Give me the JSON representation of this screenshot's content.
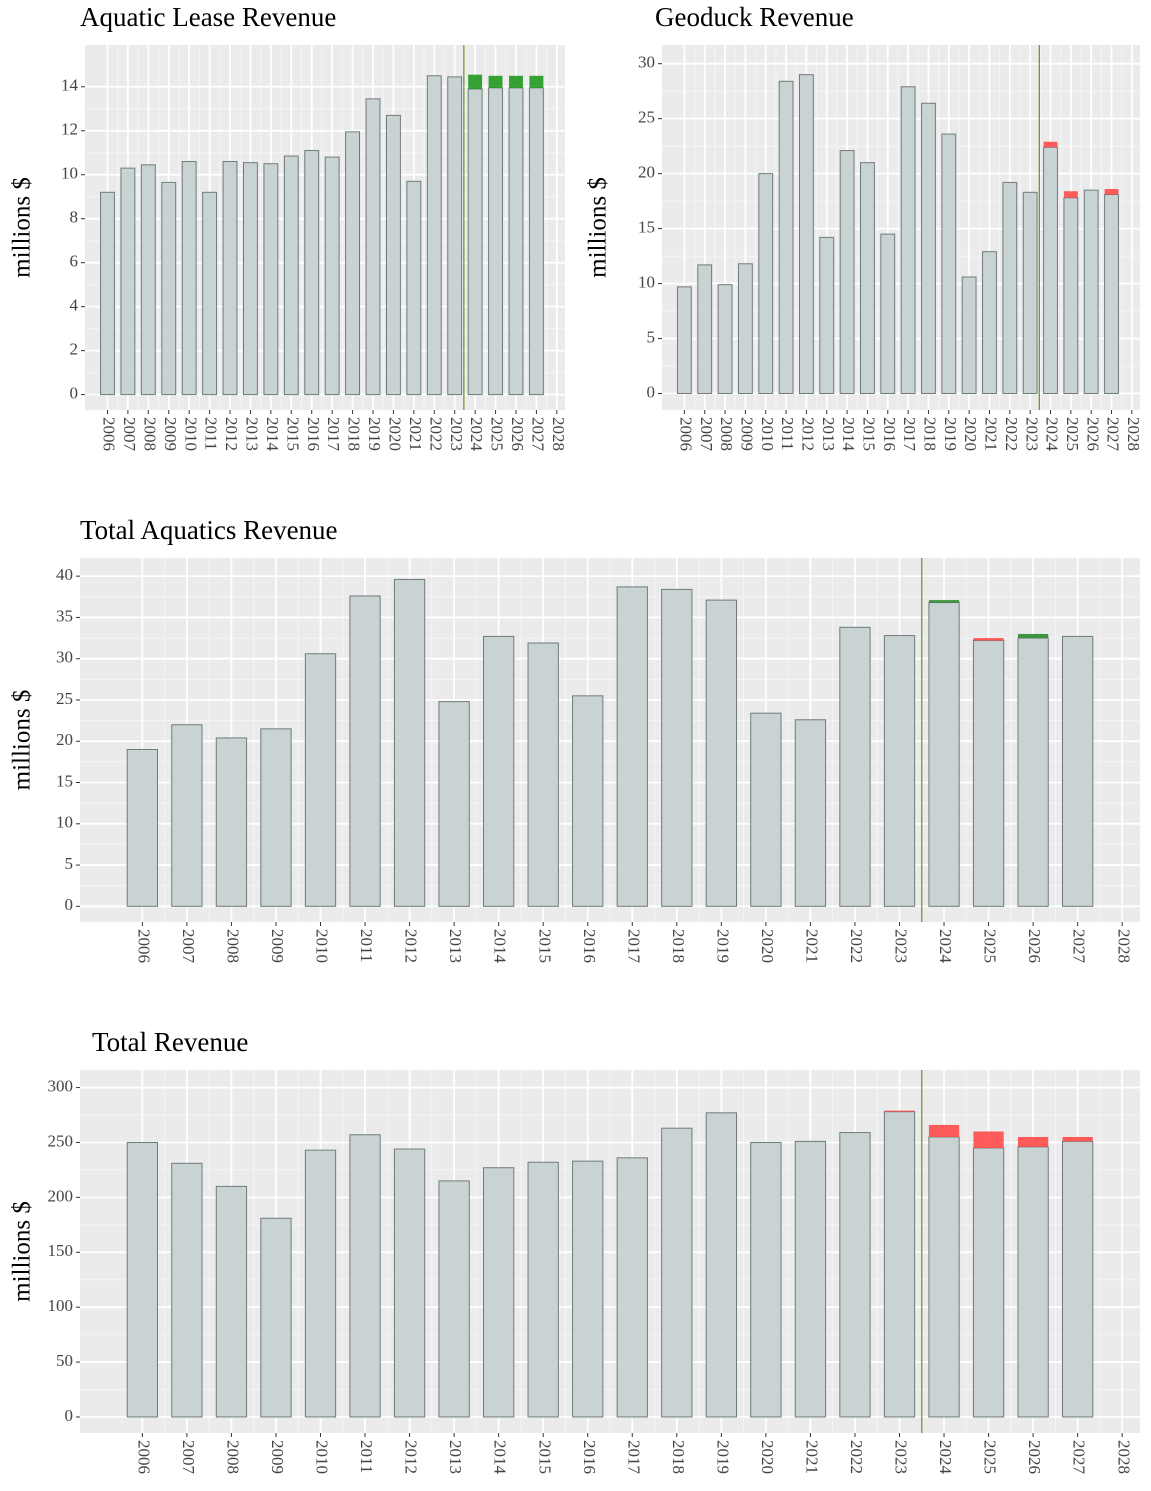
{
  "chart_data": [
    {
      "type": "bar",
      "title": "Aquatic Lease Revenue",
      "y_label": "millions $",
      "x": [
        2006,
        2007,
        2008,
        2009,
        2010,
        2011,
        2012,
        2013,
        2014,
        2015,
        2016,
        2017,
        2018,
        2019,
        2020,
        2021,
        2022,
        2023,
        2024,
        2025,
        2026,
        2027,
        2028
      ],
      "series": [
        {
          "color": "#c9d3d3",
          "values": [
            9.2,
            10.3,
            10.45,
            9.65,
            10.6,
            9.2,
            10.6,
            10.55,
            10.5,
            10.85,
            11.1,
            10.8,
            11.95,
            13.45,
            12.7,
            9.7,
            14.5,
            14.45,
            13.9,
            13.95,
            13.95,
            13.95,
            null
          ]
        },
        {
          "color": "#1f9a1f",
          "values": [
            null,
            null,
            null,
            null,
            null,
            null,
            null,
            null,
            null,
            null,
            null,
            null,
            null,
            null,
            null,
            null,
            null,
            null,
            0.65,
            0.55,
            0.55,
            0.55,
            null
          ]
        }
      ],
      "xlim": [
        2004.9,
        2028.4
      ],
      "ylim": [
        -0.7,
        15.9
      ],
      "xticks": [
        2006,
        2007,
        2008,
        2009,
        2010,
        2011,
        2012,
        2013,
        2014,
        2015,
        2016,
        2017,
        2018,
        2019,
        2020,
        2021,
        2022,
        2023,
        2024,
        2025,
        2026,
        2027,
        2028
      ],
      "yticks": [
        0,
        2,
        4,
        6,
        8,
        10,
        12,
        14
      ],
      "grid": true,
      "vline": 2023.45,
      "vline_color": "#6b8e23"
    },
    {
      "type": "bar",
      "title": "Geoduck Revenue",
      "y_label": "millions $",
      "x": [
        2006,
        2007,
        2008,
        2009,
        2010,
        2011,
        2012,
        2013,
        2014,
        2015,
        2016,
        2017,
        2018,
        2019,
        2020,
        2021,
        2022,
        2023,
        2024,
        2025,
        2026,
        2027,
        2028
      ],
      "series": [
        {
          "color": "#c9d3d3",
          "values": [
            9.7,
            11.7,
            9.9,
            11.8,
            20.0,
            28.4,
            29.0,
            14.2,
            22.1,
            21.0,
            14.5,
            27.9,
            26.4,
            23.6,
            10.6,
            12.9,
            19.2,
            18.3,
            22.4,
            17.8,
            18.5,
            18.1,
            null
          ]
        },
        {
          "color": "#ff4a4a",
          "values": [
            null,
            null,
            null,
            null,
            null,
            null,
            null,
            null,
            null,
            null,
            null,
            null,
            null,
            null,
            null,
            null,
            null,
            null,
            0.5,
            0.6,
            null,
            0.5,
            null
          ]
        }
      ],
      "xlim": [
        2004.9,
        2028.4
      ],
      "ylim": [
        -1.5,
        31.7
      ],
      "xticks": [
        2006,
        2007,
        2008,
        2009,
        2010,
        2011,
        2012,
        2013,
        2014,
        2015,
        2016,
        2017,
        2018,
        2019,
        2020,
        2021,
        2022,
        2023,
        2024,
        2025,
        2026,
        2027,
        2028
      ],
      "yticks": [
        0,
        5,
        10,
        15,
        20,
        25,
        30
      ],
      "grid": true,
      "vline": 2023.45,
      "vline_color": "#6b8e23"
    },
    {
      "type": "bar",
      "title": "Total Aquatics Revenue",
      "y_label": "millions $",
      "x": [
        2006,
        2007,
        2008,
        2009,
        2010,
        2011,
        2012,
        2013,
        2014,
        2015,
        2016,
        2017,
        2018,
        2019,
        2020,
        2021,
        2022,
        2023,
        2024,
        2025,
        2026,
        2027,
        2028
      ],
      "series": [
        {
          "color": "#c9d3d3",
          "values": [
            19.0,
            22.0,
            20.4,
            21.5,
            30.6,
            37.6,
            39.6,
            24.8,
            32.7,
            31.9,
            25.5,
            38.7,
            38.4,
            37.1,
            23.4,
            22.6,
            33.8,
            32.8,
            36.8,
            32.2,
            32.5,
            32.7,
            null
          ]
        },
        {
          "color": "#2e8b2e",
          "values": [
            null,
            null,
            null,
            null,
            null,
            null,
            null,
            null,
            null,
            null,
            null,
            null,
            null,
            null,
            null,
            null,
            null,
            null,
            0.3,
            null,
            0.5,
            null,
            null
          ]
        },
        {
          "color": "#ff4a4a",
          "values": [
            null,
            null,
            null,
            null,
            null,
            null,
            null,
            null,
            null,
            null,
            null,
            null,
            null,
            null,
            null,
            null,
            null,
            null,
            null,
            0.3,
            null,
            null,
            null
          ]
        }
      ],
      "xlim": [
        2004.6,
        2028.4
      ],
      "ylim": [
        -1.9,
        42.2
      ],
      "xticks": [
        2006,
        2007,
        2008,
        2009,
        2010,
        2011,
        2012,
        2013,
        2014,
        2015,
        2016,
        2017,
        2018,
        2019,
        2020,
        2021,
        2022,
        2023,
        2024,
        2025,
        2026,
        2027,
        2028
      ],
      "yticks": [
        0,
        5,
        10,
        15,
        20,
        25,
        30,
        35,
        40
      ],
      "grid": true,
      "vline": 2023.5,
      "vline_color": "#6b8e23"
    },
    {
      "type": "bar",
      "title": "Total Revenue",
      "y_label": "millions $",
      "x": [
        2006,
        2007,
        2008,
        2009,
        2010,
        2011,
        2012,
        2013,
        2014,
        2015,
        2016,
        2017,
        2018,
        2019,
        2020,
        2021,
        2022,
        2023,
        2024,
        2025,
        2026,
        2027,
        2028
      ],
      "series": [
        {
          "color": "#c9d3d3",
          "values": [
            250,
            231,
            210,
            181,
            243,
            257,
            244,
            215,
            227,
            232,
            233,
            236,
            263,
            277,
            250,
            251,
            259,
            278,
            255,
            245,
            246,
            251,
            null
          ]
        },
        {
          "color": "#ff4a4a",
          "values": [
            null,
            null,
            null,
            null,
            null,
            null,
            null,
            null,
            null,
            null,
            null,
            null,
            null,
            null,
            null,
            null,
            null,
            1,
            11,
            15,
            9,
            4,
            null
          ]
        }
      ],
      "xlim": [
        2004.6,
        2028.4
      ],
      "ylim": [
        -14.6,
        316
      ],
      "xticks": [
        2006,
        2007,
        2008,
        2009,
        2010,
        2011,
        2012,
        2013,
        2014,
        2015,
        2016,
        2017,
        2018,
        2019,
        2020,
        2021,
        2022,
        2023,
        2024,
        2025,
        2026,
        2027,
        2028
      ],
      "yticks": [
        0,
        50,
        100,
        150,
        200,
        250,
        300
      ],
      "grid": true,
      "vline": 2023.5,
      "vline_color": "#6b8e23"
    }
  ]
}
